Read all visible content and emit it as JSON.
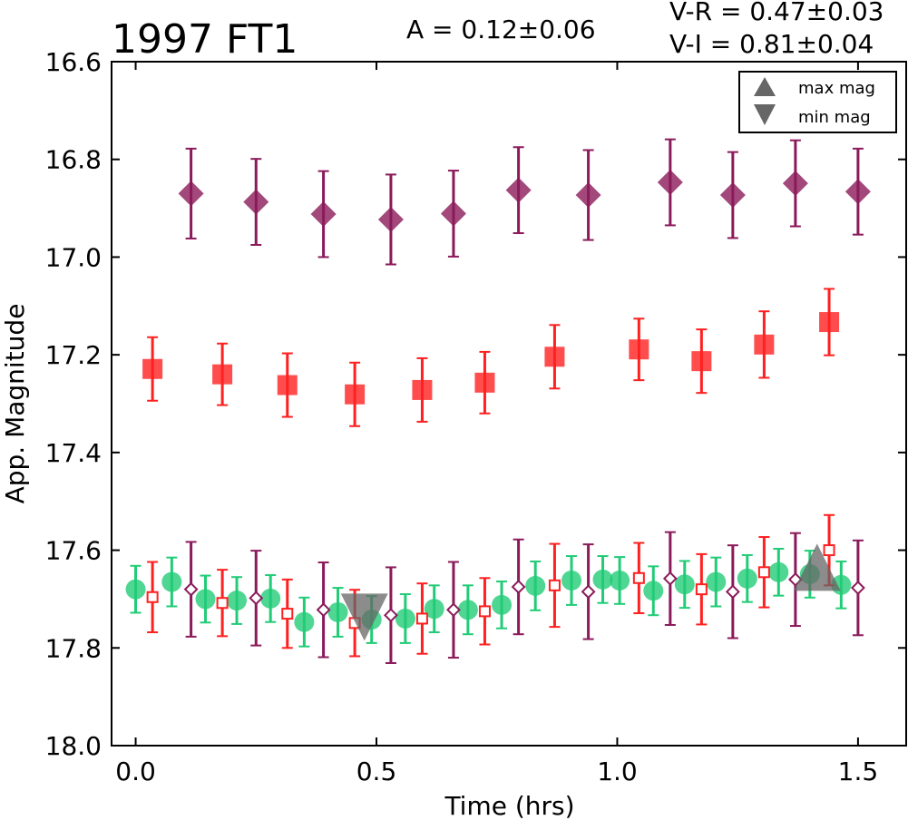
{
  "chart_data": {
    "type": "scatter",
    "title": "1997 FT1",
    "annotations": {
      "amplitude": "A  = 0.12±0.06",
      "color_vr": "V-R = 0.47±0.03",
      "color_vi": "V-I  = 0.81±0.04"
    },
    "xlabel": "Time (hrs)",
    "ylabel": "App. Magnitude",
    "xlim": [
      -0.05,
      1.6
    ],
    "ylim": [
      18.0,
      16.6
    ],
    "y_inverted": true,
    "xticks": [
      0.0,
      0.5,
      1.0,
      1.5
    ],
    "xtick_labels": [
      "0.0",
      "0.5",
      "1.0",
      "1.5"
    ],
    "yticks": [
      16.6,
      16.8,
      17.0,
      17.2,
      17.4,
      17.6,
      17.8,
      18.0
    ],
    "ytick_labels": [
      "16.6",
      "16.8",
      "17.0",
      "17.2",
      "17.4",
      "17.6",
      "17.8",
      "18.0"
    ],
    "grid": false,
    "legend": {
      "placement": "top-right",
      "entries": [
        {
          "label": "max mag",
          "marker": "triangle-up",
          "color": "#666666"
        },
        {
          "label": "min mag",
          "marker": "triangle-down",
          "color": "#666666"
        }
      ]
    },
    "colors": {
      "filter_i": "#8B1A5A",
      "filter_r": "#FF2020",
      "filter_v": "#22CC77",
      "markers": "#666666"
    },
    "series": [
      {
        "marker": "diamond-filled",
        "color": "#8B1A5A",
        "offset_view": false,
        "x": [
          0.115,
          0.25,
          0.39,
          0.53,
          0.66,
          0.795,
          0.94,
          1.11,
          1.24,
          1.37,
          1.5
        ],
        "y": [
          16.87,
          16.887,
          16.912,
          16.923,
          16.911,
          16.863,
          16.873,
          16.847,
          16.873,
          16.849,
          16.866
        ],
        "err": [
          0.092,
          0.088,
          0.088,
          0.092,
          0.088,
          0.088,
          0.092,
          0.088,
          0.088,
          0.088,
          0.088
        ]
      },
      {
        "marker": "square-filled",
        "color": "#FF2020",
        "offset_view": false,
        "x": [
          0.035,
          0.18,
          0.315,
          0.455,
          0.595,
          0.725,
          0.87,
          1.045,
          1.175,
          1.305,
          1.44
        ],
        "y": [
          17.229,
          17.24,
          17.262,
          17.281,
          17.272,
          17.257,
          17.204,
          17.189,
          17.213,
          17.179,
          17.133
        ],
        "err": [
          0.065,
          0.063,
          0.065,
          0.065,
          0.065,
          0.063,
          0.065,
          0.063,
          0.065,
          0.068,
          0.068
        ]
      },
      {
        "marker": "circle-filled",
        "color": "#22CC77",
        "offset_view": true,
        "x": [
          0.0,
          0.075,
          0.145,
          0.21,
          0.28,
          0.35,
          0.42,
          0.49,
          0.56,
          0.62,
          0.69,
          0.76,
          0.83,
          0.905,
          0.97,
          1.005,
          1.075,
          1.14,
          1.205,
          1.27,
          1.335,
          1.4,
          1.465
        ],
        "y": [
          17.68,
          17.665,
          17.7,
          17.703,
          17.699,
          17.747,
          17.727,
          17.742,
          17.74,
          17.72,
          17.722,
          17.712,
          17.673,
          17.662,
          17.66,
          17.662,
          17.683,
          17.67,
          17.665,
          17.658,
          17.645,
          17.649,
          17.671
        ],
        "err": [
          0.048,
          0.05,
          0.048,
          0.048,
          0.048,
          0.05,
          0.05,
          0.048,
          0.05,
          0.048,
          0.05,
          0.048,
          0.05,
          0.05,
          0.048,
          0.048,
          0.05,
          0.048,
          0.05,
          0.048,
          0.048,
          0.048,
          0.048
        ]
      },
      {
        "marker": "square-open",
        "color": "#FF2020",
        "offset_view": true,
        "x": [
          0.035,
          0.18,
          0.315,
          0.455,
          0.595,
          0.725,
          0.87,
          1.045,
          1.175,
          1.305,
          1.44
        ],
        "y": [
          17.696,
          17.708,
          17.73,
          17.749,
          17.74,
          17.725,
          17.672,
          17.657,
          17.68,
          17.645,
          17.6
        ],
        "err": [
          0.072,
          0.068,
          0.07,
          0.068,
          0.072,
          0.068,
          0.085,
          0.072,
          0.072,
          0.072,
          0.072
        ]
      },
      {
        "marker": "diamond-open",
        "color": "#8B1A5A",
        "offset_view": true,
        "x": [
          0.115,
          0.25,
          0.39,
          0.53,
          0.66,
          0.795,
          0.94,
          1.11,
          1.24,
          1.37,
          1.5
        ],
        "y": [
          17.68,
          17.698,
          17.722,
          17.733,
          17.722,
          17.675,
          17.685,
          17.658,
          17.685,
          17.66,
          17.677
        ],
        "err": [
          0.097,
          0.097,
          0.097,
          0.098,
          0.098,
          0.097,
          0.097,
          0.095,
          0.095,
          0.095,
          0.097
        ]
      }
    ],
    "extrema": [
      {
        "label": "max mag",
        "marker": "triangle-up",
        "x": 1.415,
        "y": 17.635
      },
      {
        "label": "min mag",
        "marker": "triangle-down",
        "x": 0.475,
        "y": 17.737
      }
    ]
  }
}
